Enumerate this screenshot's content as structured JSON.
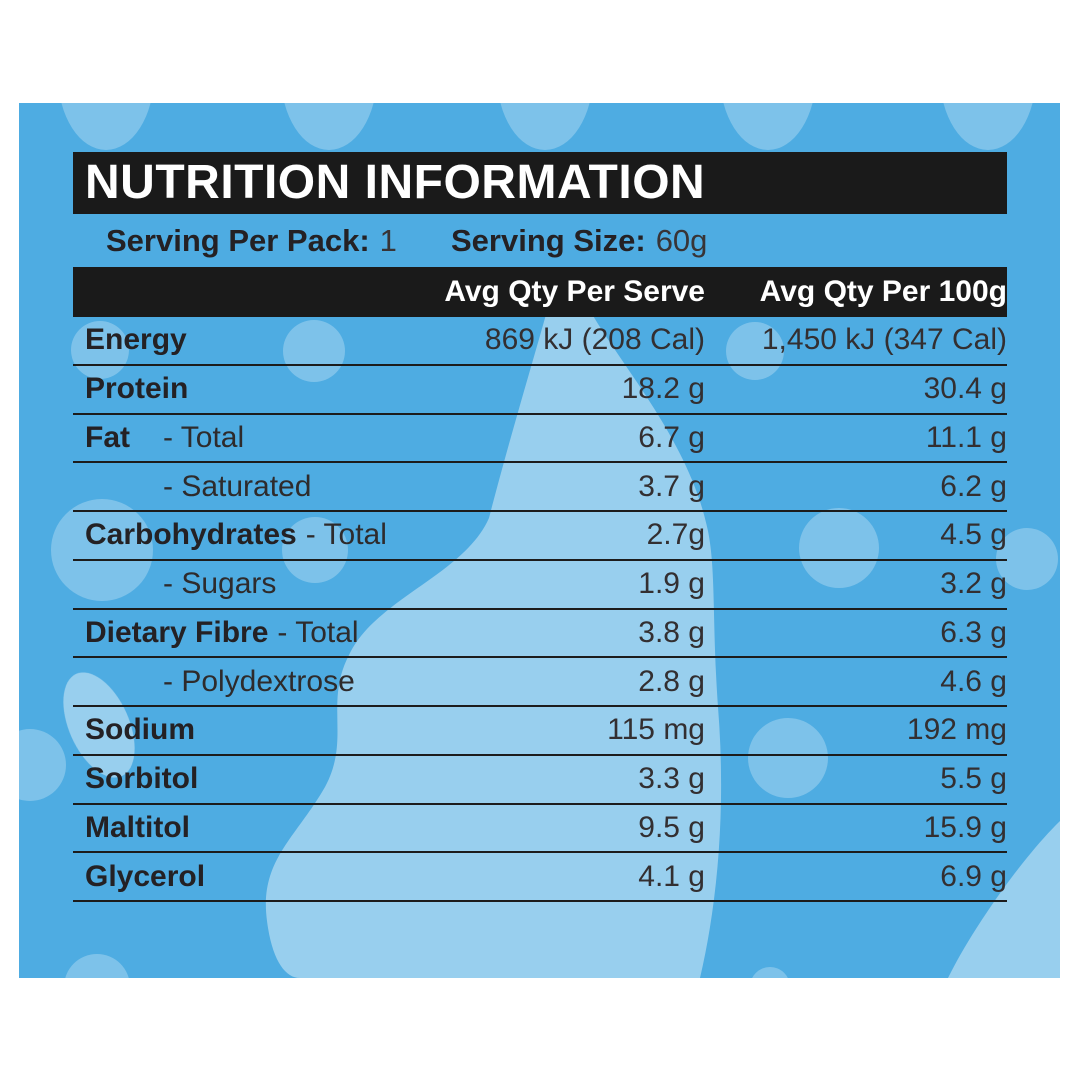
{
  "panel": {
    "title": "NUTRITION INFORMATION",
    "serving": {
      "pack_label": "Serving Per Pack:",
      "pack_value": "1",
      "size_label": "Serving Size:",
      "size_value": "60g"
    },
    "columns": {
      "serve": "Avg Qty Per Serve",
      "per100": "Avg Qty Per 100g"
    }
  },
  "table": {
    "rows": [
      {
        "label": [
          {
            "t": "Energy",
            "b": true
          }
        ],
        "serve": "869 kJ (208 Cal)",
        "per100": "1,450 kJ (347 Cal)"
      },
      {
        "label": [
          {
            "t": "Protein",
            "b": true
          }
        ],
        "serve": "18.2 g",
        "per100": "30.4 g"
      },
      {
        "label": [
          {
            "t": "Fat",
            "b": true
          },
          {
            "t": "- Total",
            "at": 90
          }
        ],
        "serve": "6.7 g",
        "per100": "11.1 g"
      },
      {
        "label": [
          {
            "t": "- Saturated",
            "at": 90
          }
        ],
        "serve": "3.7 g",
        "per100": "6.2 g"
      },
      {
        "label": [
          {
            "t": "Carbohydrates",
            "b": true
          },
          {
            "t": "- Total"
          }
        ],
        "serve": "2.7g",
        "per100": "4.5 g"
      },
      {
        "label": [
          {
            "t": "- Sugars",
            "at": 90
          }
        ],
        "serve": "1.9 g",
        "per100": "3.2 g"
      },
      {
        "label": [
          {
            "t": "Dietary Fibre",
            "b": true
          },
          {
            "t": "- Total"
          }
        ],
        "serve": "3.8 g",
        "per100": "6.3 g"
      },
      {
        "label": [
          {
            "t": "- Polydextrose",
            "at": 90
          }
        ],
        "serve": "2.8 g",
        "per100": "4.6 g"
      },
      {
        "label": [
          {
            "t": "Sodium",
            "b": true
          }
        ],
        "serve": "115 mg",
        "per100": "192 mg"
      },
      {
        "label": [
          {
            "t": "Sorbitol",
            "b": true
          }
        ],
        "serve": "3.3 g",
        "per100": "5.5 g"
      },
      {
        "label": [
          {
            "t": "Maltitol",
            "b": true
          }
        ],
        "serve": "9.5 g",
        "per100": "15.9 g"
      },
      {
        "label": [
          {
            "t": "Glycerol",
            "b": true
          }
        ],
        "serve": "4.1 g",
        "per100": "6.9 g"
      }
    ]
  },
  "colors": {
    "page_background": "#FFFFFF",
    "panel_base_blue": "#4EACE2",
    "dot_light_blue": "#7CC3EE",
    "wash_pale_blue": "#9FD2F2",
    "header_bar_black": "#1A1A1A",
    "rule_black": "#1C1C1C",
    "label_text": "#242124",
    "value_text": "#332F31",
    "header_text": "#FFFFFF"
  }
}
